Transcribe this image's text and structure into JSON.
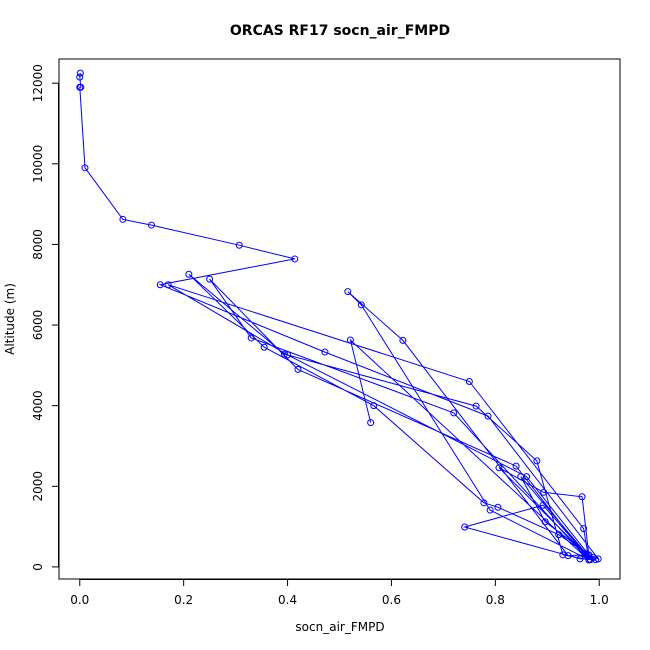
{
  "chart_data": {
    "type": "line",
    "title": "ORCAS RF17 socn_air_FMPD",
    "xlabel": "socn_air_FMPD",
    "ylabel": "Altitude (m)",
    "xlim": [
      -0.04,
      1.04
    ],
    "ylim": [
      -300,
      12600
    ],
    "x_ticks": [
      0.0,
      0.2,
      0.4,
      0.6,
      0.8,
      1.0
    ],
    "x_tick_labels": [
      "0.0",
      "0.2",
      "0.4",
      "0.6",
      "0.8",
      "1.0"
    ],
    "y_ticks": [
      0,
      2000,
      4000,
      6000,
      8000,
      10000,
      12000
    ],
    "y_tick_labels": [
      "0",
      "2000",
      "4000",
      "6000",
      "8000",
      "10000",
      "12000"
    ],
    "grid": false,
    "markers": "open-circle",
    "color": "#0000ff",
    "series": [
      {
        "x": [
          0.001,
          0.0,
          0.002,
          0.0,
          0.01,
          0.083,
          0.138,
          0.307,
          0.414,
          0.155,
          0.472,
          0.786,
          0.998,
          0.98,
          0.967,
          0.893,
          0.807,
          0.973,
          0.983,
          0.892,
          0.741,
          0.963,
          0.993,
          0.896,
          0.849,
          0.977,
          0.988,
          0.922,
          0.805,
          0.778,
          0.566,
          0.355,
          0.21,
          0.394,
          0.763,
          0.88,
          0.93,
          0.98,
          0.79,
          0.542,
          0.516,
          0.622,
          0.94,
          0.98,
          0.86,
          0.4,
          0.17,
          0.75,
          0.97,
          0.98,
          0.84,
          0.42,
          0.25,
          0.33,
          0.72,
          0.98,
          0.521,
          0.56
        ],
        "y": [
          12250,
          12150,
          11900,
          11900,
          9900,
          8620,
          8480,
          7980,
          7640,
          7000,
          5330,
          3740,
          200,
          300,
          1740,
          1850,
          2460,
          330,
          180,
          1530,
          990,
          200,
          180,
          1120,
          2240,
          300,
          230,
          800,
          1480,
          1590,
          4000,
          5450,
          7260,
          5280,
          3990,
          2630,
          300,
          180,
          1410,
          6500,
          6830,
          5620,
          280,
          300,
          2240,
          5260,
          7000,
          4600,
          950,
          180,
          2500,
          4900,
          7140,
          5680,
          3820,
          170,
          5630,
          3580
        ]
      }
    ]
  }
}
